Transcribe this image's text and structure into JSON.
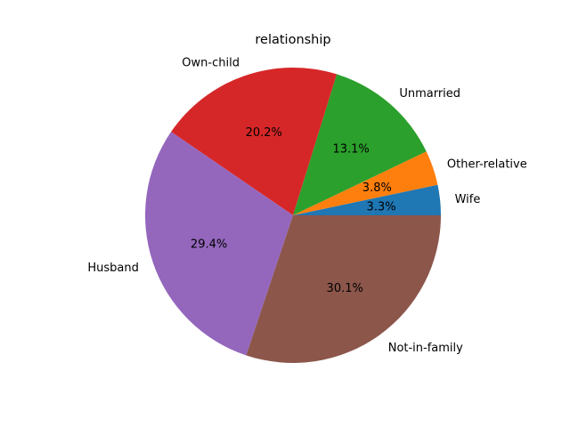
{
  "chart_data": {
    "type": "pie",
    "title": "relationship",
    "slices": [
      {
        "label": "Wife",
        "value": 3.3,
        "pct_text": "3.3%",
        "color": "#1f77b4"
      },
      {
        "label": "Other-relative",
        "value": 3.8,
        "pct_text": "3.8%",
        "color": "#ff7f0e"
      },
      {
        "label": "Unmarried",
        "value": 13.1,
        "pct_text": "13.1%",
        "color": "#2ca02c"
      },
      {
        "label": "Own-child",
        "value": 20.2,
        "pct_text": "20.2%",
        "color": "#d62728"
      },
      {
        "label": "Husband",
        "value": 29.4,
        "pct_text": "29.4%",
        "color": "#9467bd"
      },
      {
        "label": "Not-in-family",
        "value": 30.1,
        "pct_text": "30.1%",
        "color": "#8c564b"
      }
    ],
    "start_angle_deg": 0,
    "direction": "counterclockwise",
    "legend": "none"
  }
}
